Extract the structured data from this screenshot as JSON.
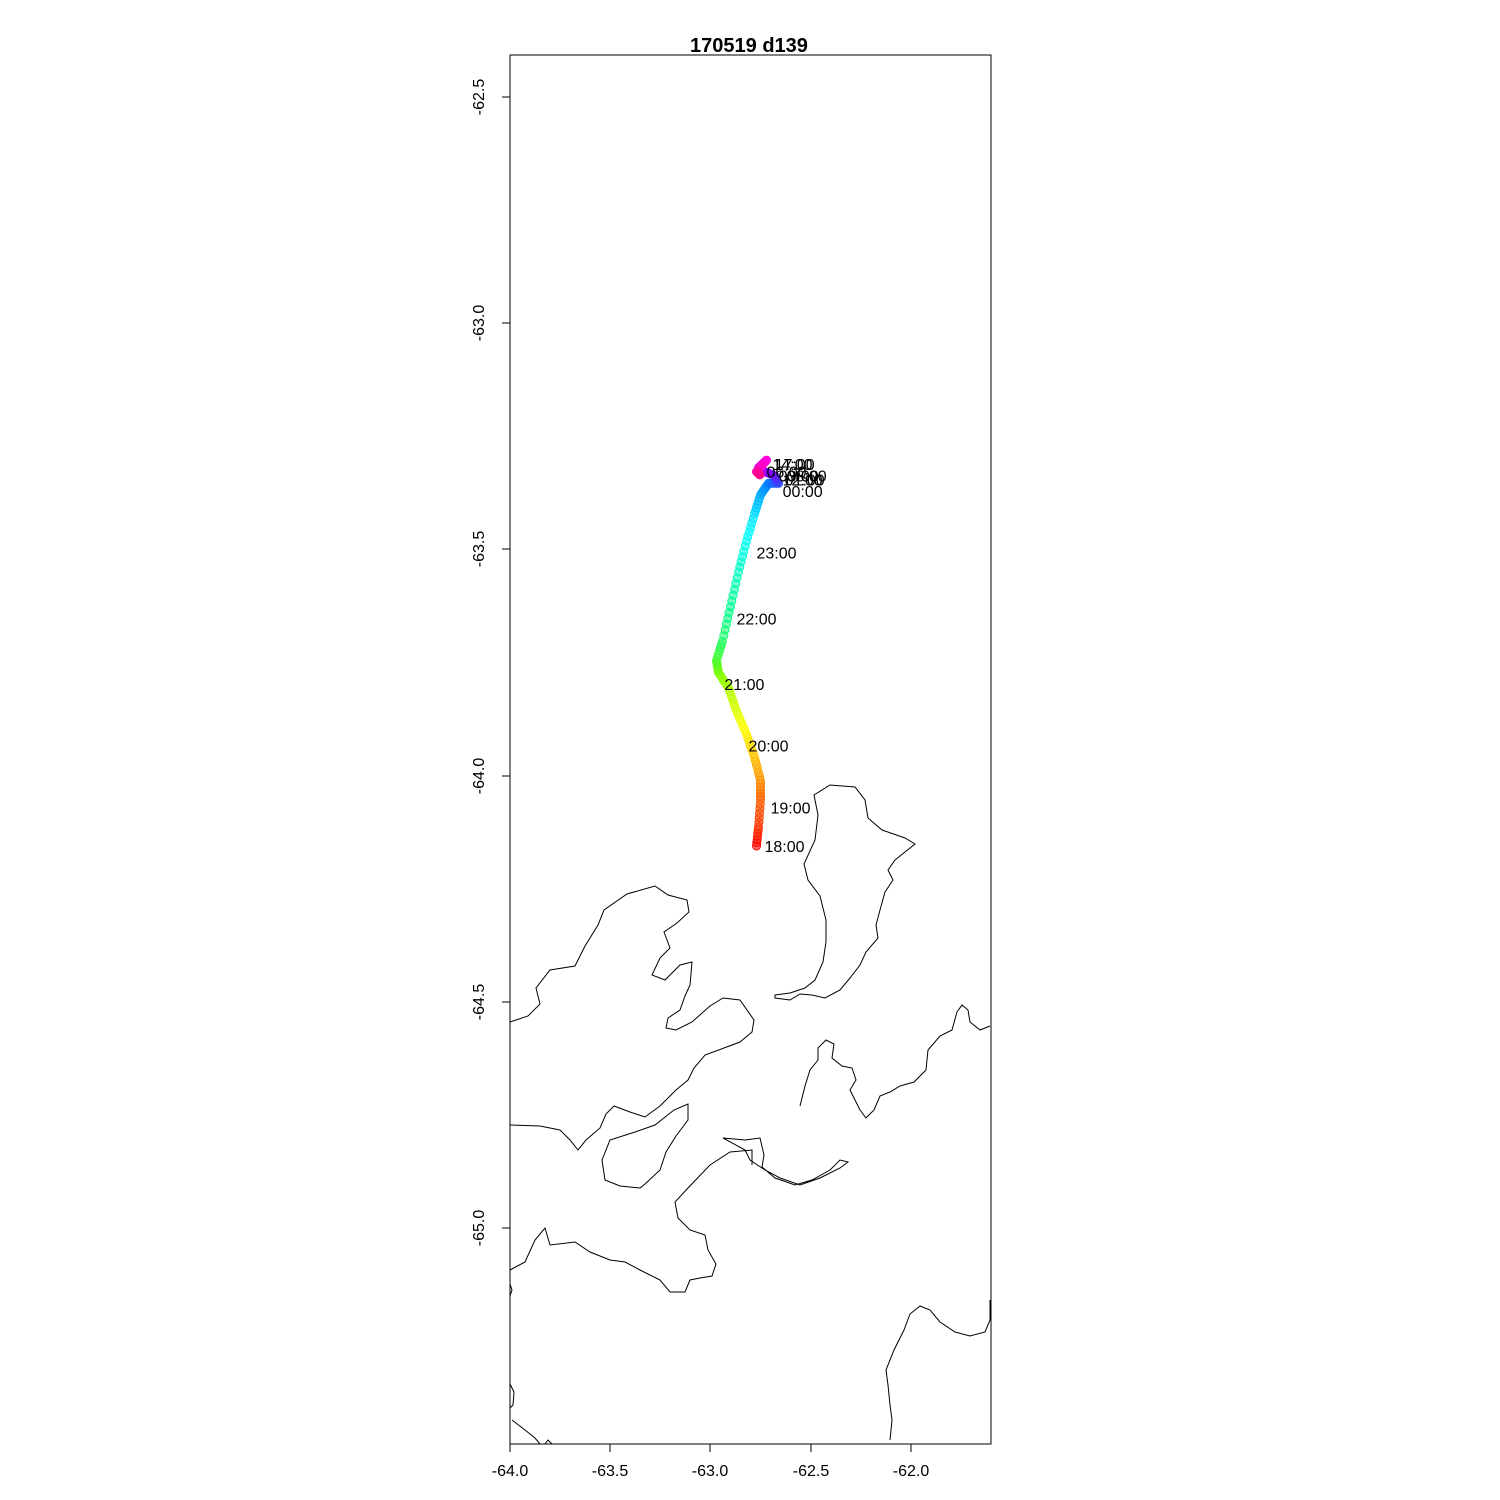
{
  "title": "170519   d139",
  "x_ticks": [
    "-64.0",
    "-63.5",
    "-63.0",
    "-62.5",
    "-62.0"
  ],
  "y_ticks": [
    "-62.5",
    "-63.0",
    "-63.5",
    "-64.0",
    "-64.5",
    "-65.0"
  ],
  "chart_data": {
    "type": "scatter",
    "title": "170519   d139",
    "xlabel": "",
    "ylabel": "",
    "xlim": [
      -64.0,
      -61.6
    ],
    "ylim": [
      -66.0,
      -62.4
    ],
    "x_ticks": [
      -64.0,
      -63.5,
      -63.0,
      -62.5,
      -62.0
    ],
    "y_ticks": [
      -62.5,
      -63.0,
      -63.5,
      -64.0,
      -64.5,
      -65.0
    ],
    "track": [
      {
        "lon": -62.77,
        "lat": -64.45
      },
      {
        "lon": -62.76,
        "lat": -64.4
      },
      {
        "lon": -62.75,
        "lat": -64.33
      },
      {
        "lon": -62.75,
        "lat": -64.28
      },
      {
        "lon": -62.78,
        "lat": -64.22
      },
      {
        "lon": -62.82,
        "lat": -64.16
      },
      {
        "lon": -62.87,
        "lat": -64.1
      },
      {
        "lon": -62.91,
        "lat": -64.04
      },
      {
        "lon": -62.96,
        "lat": -64.0
      },
      {
        "lon": -62.97,
        "lat": -63.97
      },
      {
        "lon": -62.94,
        "lat": -63.92
      },
      {
        "lon": -62.9,
        "lat": -63.83
      },
      {
        "lon": -62.86,
        "lat": -63.74
      },
      {
        "lon": -62.82,
        "lat": -63.66
      },
      {
        "lon": -62.78,
        "lat": -63.59
      },
      {
        "lon": -62.75,
        "lat": -63.54
      },
      {
        "lon": -62.71,
        "lat": -63.51
      },
      {
        "lon": -62.66,
        "lat": -63.51
      },
      {
        "lon": -62.68,
        "lat": -63.49
      },
      {
        "lon": -62.73,
        "lat": -63.48
      },
      {
        "lon": -62.76,
        "lat": -63.47
      },
      {
        "lon": -62.74,
        "lat": -63.46
      },
      {
        "lon": -62.72,
        "lat": -63.45
      },
      {
        "lon": -62.77,
        "lat": -63.48
      },
      {
        "lon": -62.75,
        "lat": -63.49
      }
    ],
    "time_labels": [
      {
        "text": "18:00",
        "lon": -62.73,
        "lat": -64.45
      },
      {
        "text": "19:00",
        "lon": -62.7,
        "lat": -64.35
      },
      {
        "text": "20:00",
        "lon": -62.81,
        "lat": -64.19
      },
      {
        "text": "21:00",
        "lon": -62.93,
        "lat": -64.03
      },
      {
        "text": "22:00",
        "lon": -62.87,
        "lat": -63.86
      },
      {
        "text": "23:00",
        "lon": -62.77,
        "lat": -63.69
      },
      {
        "text": "00:00",
        "lon": -62.64,
        "lat": -63.53
      },
      {
        "text": "01:00",
        "lon": -62.63,
        "lat": -63.5
      },
      {
        "text": "12:00",
        "lon": -62.64,
        "lat": -63.5
      },
      {
        "text": "14:00",
        "lon": -62.69,
        "lat": -63.46
      },
      {
        "text": "17:00",
        "lon": -62.68,
        "lat": -63.46
      },
      {
        "text": "06:00",
        "lon": -62.72,
        "lat": -63.48
      },
      {
        "text": "03:00",
        "lon": -62.66,
        "lat": -63.49
      },
      {
        "text": "08:00",
        "lon": -62.62,
        "lat": -63.49
      }
    ],
    "colors": [
      "#ff0000",
      "#ff7f00",
      "#ffff00",
      "#7fff00",
      "#00ff7f",
      "#00ffff",
      "#007fff",
      "#7f00ff",
      "#ff00ff",
      "#ff0080"
    ]
  }
}
